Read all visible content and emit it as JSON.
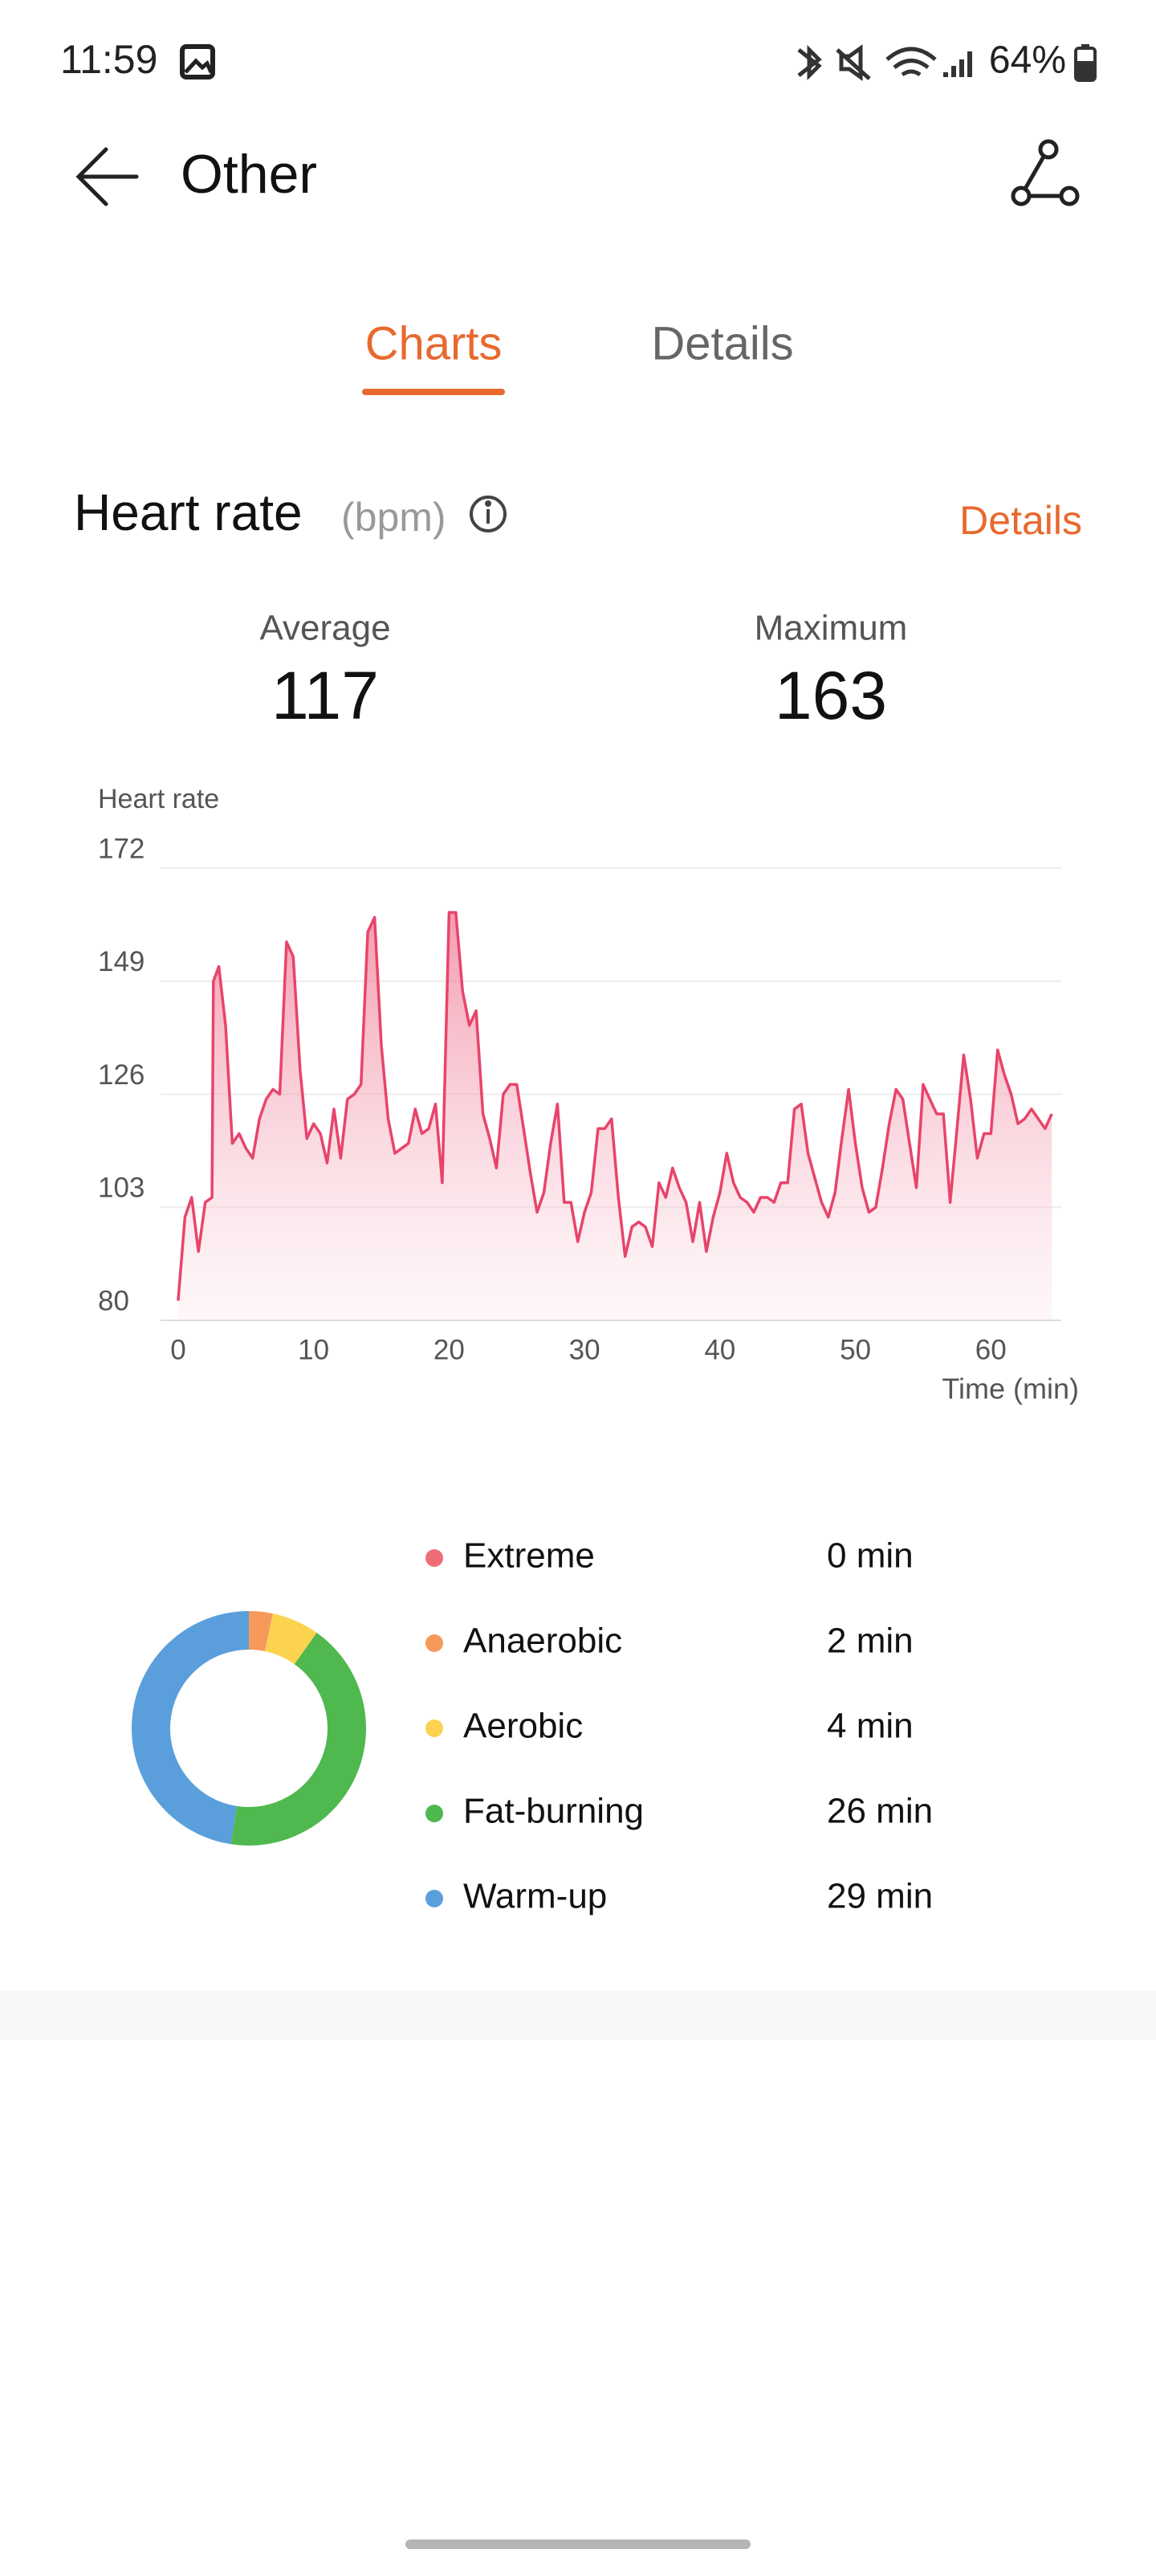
{
  "status_bar": {
    "time": "11:59",
    "battery": "64%"
  },
  "header": {
    "title": "Other"
  },
  "tabs": [
    "Charts",
    "Details"
  ],
  "section": {
    "title": "Heart rate",
    "unit": "(bpm)",
    "link": "Details"
  },
  "stats": [
    {
      "label": "Average",
      "value": 117
    },
    {
      "label": "Maximum",
      "value": 163
    }
  ],
  "chart_data": [
    {
      "type": "line",
      "y_label": "Heart rate",
      "x_label": "Time (min)",
      "color": "#e8446a",
      "grid": true,
      "x": [
        0,
        0.5,
        1,
        1.5,
        2,
        2.5,
        2.6,
        3,
        3.5,
        4,
        4.5,
        5,
        5.5,
        6,
        6.5,
        7,
        7.5,
        8,
        8.5,
        9,
        9.5,
        10,
        10.5,
        11,
        11.5,
        12,
        12.5,
        13,
        13.5,
        14,
        14.5,
        15,
        15.5,
        16,
        16.5,
        17,
        17.5,
        18,
        18.5,
        19,
        19.5,
        20,
        20.5,
        21,
        21.5,
        22,
        22.5,
        23,
        23.5,
        24,
        24.5,
        25,
        25.5,
        26,
        26.5,
        27,
        27.5,
        28,
        28.5,
        29,
        29.5,
        30,
        30.5,
        31,
        31.5,
        32,
        32.5,
        33,
        33.5,
        34,
        34.5,
        35,
        35.5,
        36,
        36.5,
        37,
        37.5,
        38,
        38.5,
        39,
        39.5,
        40,
        40.5,
        41,
        41.5,
        42,
        42.5,
        43,
        43.5,
        44,
        44.5,
        45,
        45.5,
        46,
        46.5,
        47,
        47.5,
        48,
        48.5,
        49,
        49.5,
        50,
        50.5,
        51,
        51.5,
        52,
        52.5,
        53,
        53.5,
        54,
        54.5,
        55,
        55.5,
        56,
        56.5,
        57,
        57.5,
        58,
        58.5,
        59,
        59.5,
        60,
        60.5,
        61,
        61.5,
        62,
        62.5,
        63,
        64,
        64.5
      ],
      "values": [
        84,
        101,
        105,
        94,
        104,
        105,
        149,
        152,
        140,
        116,
        118,
        115,
        113,
        121,
        125,
        127,
        126,
        157,
        154,
        131,
        117,
        120,
        118,
        112,
        123,
        113,
        125,
        126,
        128,
        159,
        162,
        136,
        121,
        114,
        115,
        116,
        123,
        118,
        119,
        124,
        108,
        163,
        163,
        147,
        140,
        143,
        122,
        117,
        111,
        126,
        128,
        128,
        119,
        110,
        102,
        106,
        116,
        124,
        104,
        104,
        96,
        102,
        106,
        119,
        119,
        121,
        105,
        93,
        99,
        100,
        99,
        95,
        108,
        105,
        111,
        107,
        104,
        96,
        104,
        94,
        101,
        106,
        114,
        108,
        105,
        104,
        102,
        105,
        105,
        104,
        108,
        108,
        123,
        124,
        114,
        109,
        104,
        101,
        106,
        117,
        127,
        116,
        107,
        102,
        103,
        111,
        120,
        127,
        125,
        116,
        107,
        128,
        125,
        122,
        122,
        104,
        119,
        134,
        125,
        113,
        118,
        118,
        135,
        130,
        126,
        120,
        121,
        123,
        119,
        122
      ],
      "xlim": [
        -1.3,
        65.2
      ],
      "ylim": [
        80,
        172
      ],
      "xticks": [
        0,
        10,
        20,
        30,
        40,
        50,
        60
      ],
      "yticks": [
        80,
        103,
        126,
        149,
        172
      ]
    },
    {
      "type": "donut",
      "categories": [
        "Extreme",
        "Anaerobic",
        "Aerobic",
        "Fat-burning",
        "Warm-up"
      ],
      "values": [
        0,
        2,
        4,
        26,
        29
      ],
      "value_labels": [
        "0 min",
        "2 min",
        "4 min",
        "26 min",
        "29 min"
      ],
      "colors": [
        "#ee6e78",
        "#f59a5b",
        "#fbd34f",
        "#4fb84e",
        "#5a9fdc"
      ]
    }
  ]
}
